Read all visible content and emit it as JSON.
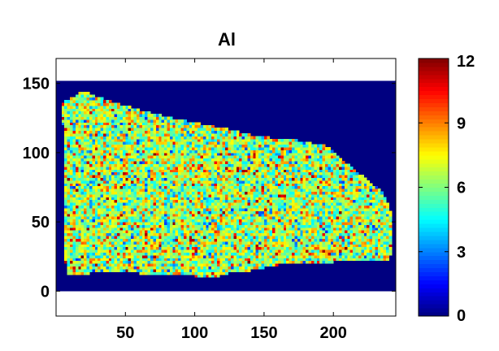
{
  "chart_data": {
    "type": "heatmap",
    "title": "Al",
    "xlabel": "",
    "ylabel": "",
    "xlim": [
      0,
      245
    ],
    "ylim": [
      -18,
      168
    ],
    "image_extent": {
      "x": [
        0,
        245
      ],
      "y": [
        0,
        152
      ]
    },
    "x_ticks": [
      {
        "value": 50,
        "label": "50"
      },
      {
        "value": 100,
        "label": "100"
      },
      {
        "value": 150,
        "label": "150"
      },
      {
        "value": 200,
        "label": "200"
      }
    ],
    "y_ticks": [
      {
        "value": 0,
        "label": "0"
      },
      {
        "value": 50,
        "label": "50"
      },
      {
        "value": 100,
        "label": "100"
      },
      {
        "value": 150,
        "label": "150"
      }
    ],
    "colormap": "jet",
    "background_value": 0,
    "value_range": [
      0,
      12
    ],
    "typical_inside_value_range": [
      3,
      10
    ],
    "colorbar": {
      "range": [
        0,
        12
      ],
      "ticks": [
        {
          "value": 0,
          "label": "0"
        },
        {
          "value": 3,
          "label": "3"
        },
        {
          "value": 6,
          "label": "6"
        },
        {
          "value": 9,
          "label": "9"
        },
        {
          "value": 12,
          "label": "12"
        }
      ]
    },
    "region_outline": [
      [
        5,
        135
      ],
      [
        8,
        138
      ],
      [
        15,
        142
      ],
      [
        20,
        145
      ],
      [
        28,
        141
      ],
      [
        40,
        137
      ],
      [
        60,
        131
      ],
      [
        80,
        126
      ],
      [
        100,
        122
      ],
      [
        120,
        118
      ],
      [
        140,
        113
      ],
      [
        160,
        110
      ],
      [
        175,
        109
      ],
      [
        185,
        107
      ],
      [
        195,
        105
      ],
      [
        205,
        96
      ],
      [
        215,
        88
      ],
      [
        225,
        80
      ],
      [
        235,
        72
      ],
      [
        240,
        63
      ],
      [
        242,
        53
      ],
      [
        243,
        42
      ],
      [
        242,
        30
      ],
      [
        240,
        23
      ],
      [
        220,
        22
      ],
      [
        200,
        21
      ],
      [
        180,
        20
      ],
      [
        160,
        19
      ],
      [
        140,
        15
      ],
      [
        125,
        13
      ],
      [
        115,
        10
      ],
      [
        100,
        11
      ],
      [
        80,
        12
      ],
      [
        60,
        13
      ],
      [
        40,
        14
      ],
      [
        25,
        13
      ],
      [
        15,
        12
      ],
      [
        9,
        13
      ],
      [
        7,
        20
      ],
      [
        6,
        40
      ],
      [
        6,
        60
      ],
      [
        6,
        80
      ],
      [
        6,
        100
      ],
      [
        5,
        120
      ]
    ]
  }
}
